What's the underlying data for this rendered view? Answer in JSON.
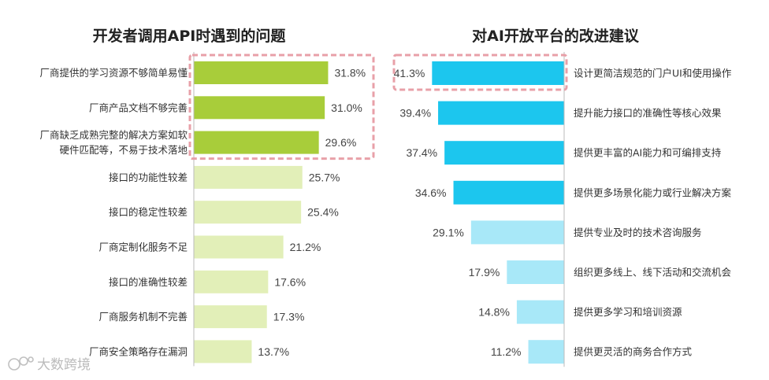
{
  "chart_data": [
    {
      "type": "bar",
      "orientation": "horizontal",
      "title": "开发者调用API时遇到的问题",
      "categories": [
        [
          "厂商提供的学习资源不够简单易懂"
        ],
        [
          "厂商产品文档不够完善"
        ],
        [
          "厂商缺乏成熟完整的解决方案如软",
          "硬件匹配等，不易于技术落地"
        ],
        [
          "接口的功能性较差"
        ],
        [
          "接口的稳定性较差"
        ],
        [
          "厂商定制化服务不足"
        ],
        [
          "接口的准确性较差"
        ],
        [
          "厂商服务机制不完善"
        ],
        [
          "厂商安全策略存在漏洞"
        ]
      ],
      "values": [
        31.8,
        31.0,
        29.6,
        25.7,
        25.4,
        21.2,
        17.6,
        17.3,
        13.7
      ],
      "value_labels": [
        "31.8%",
        "31.0%",
        "29.6%",
        "25.7%",
        "25.4%",
        "21.2%",
        "17.6%",
        "17.3%",
        "13.7%"
      ],
      "unit": "%",
      "bar_direction": "left-to-right",
      "highlighted_top": 3,
      "colors": {
        "highlight": "#a8cd3a",
        "normal": "#e2efb8",
        "box": "#e8a0a8"
      }
    },
    {
      "type": "bar",
      "orientation": "horizontal",
      "title": "对AI开放平台的改进建议",
      "categories": [
        [
          "设计更简洁规范的门户UI和使用操作"
        ],
        [
          "提升能力接口的准确性等核心效果"
        ],
        [
          "提供更丰富的AI能力和可编排支持"
        ],
        [
          "提供更多场景化能力或行业解决方案"
        ],
        [
          "提供专业及时的技术咨询服务"
        ],
        [
          "组织更多线上、线下活动和交流机会"
        ],
        [
          "提供更多学习和培训资源"
        ],
        [
          "提供更灵活的商务合作方式"
        ]
      ],
      "values": [
        41.3,
        39.4,
        37.4,
        34.6,
        29.1,
        17.9,
        14.8,
        11.2
      ],
      "value_labels": [
        "41.3%",
        "39.4%",
        "37.4%",
        "34.6%",
        "29.1%",
        "17.9%",
        "14.8%",
        "11.2%"
      ],
      "unit": "%",
      "bar_direction": "right-to-left",
      "highlighted_top": 4,
      "boxed_top": 1,
      "colors": {
        "highlight": "#1cc6ee",
        "normal": "#a8e8f8",
        "box": "#e8a0a8"
      }
    }
  ],
  "watermark": "大数跨境"
}
